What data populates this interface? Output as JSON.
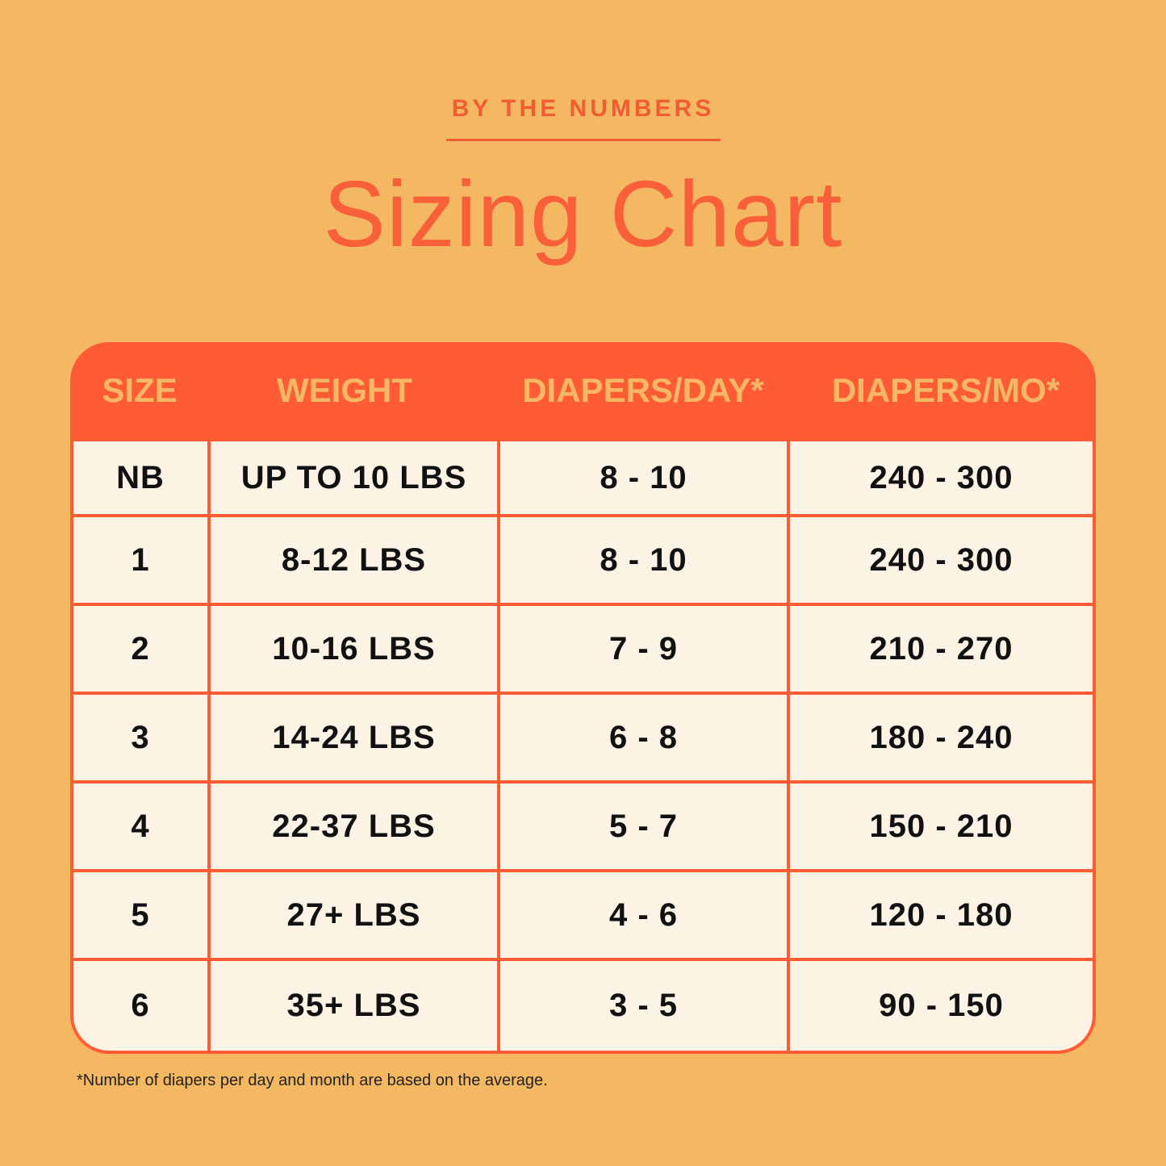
{
  "eyebrow": "BY THE NUMBERS",
  "title": "Sizing Chart",
  "colors": {
    "background": "#F4B862",
    "accent": "#FF5C35",
    "cell": "#FDF3E5",
    "header_text": "#F7B866"
  },
  "table": {
    "headers": [
      "SIZE",
      "WEIGHT",
      "DIAPERS/DAY*",
      "DIAPERS/MO*"
    ],
    "rows": [
      [
        "NB",
        "UP TO 10 LBS",
        "8 - 10",
        "240 - 300"
      ],
      [
        "1",
        "8-12 LBS",
        "8 - 10",
        "240 - 300"
      ],
      [
        "2",
        "10-16 LBS",
        "7 - 9",
        "210 - 270"
      ],
      [
        "3",
        "14-24 LBS",
        "6 - 8",
        "180 - 240"
      ],
      [
        "4",
        "22-37 LBS",
        "5 - 7",
        "150 - 210"
      ],
      [
        "5",
        "27+ LBS",
        "4 - 6",
        "120 - 180"
      ],
      [
        "6",
        "35+ LBS",
        "3 - 5",
        "90 - 150"
      ]
    ]
  },
  "footnote": "*Number of diapers per day and month are based on the average."
}
